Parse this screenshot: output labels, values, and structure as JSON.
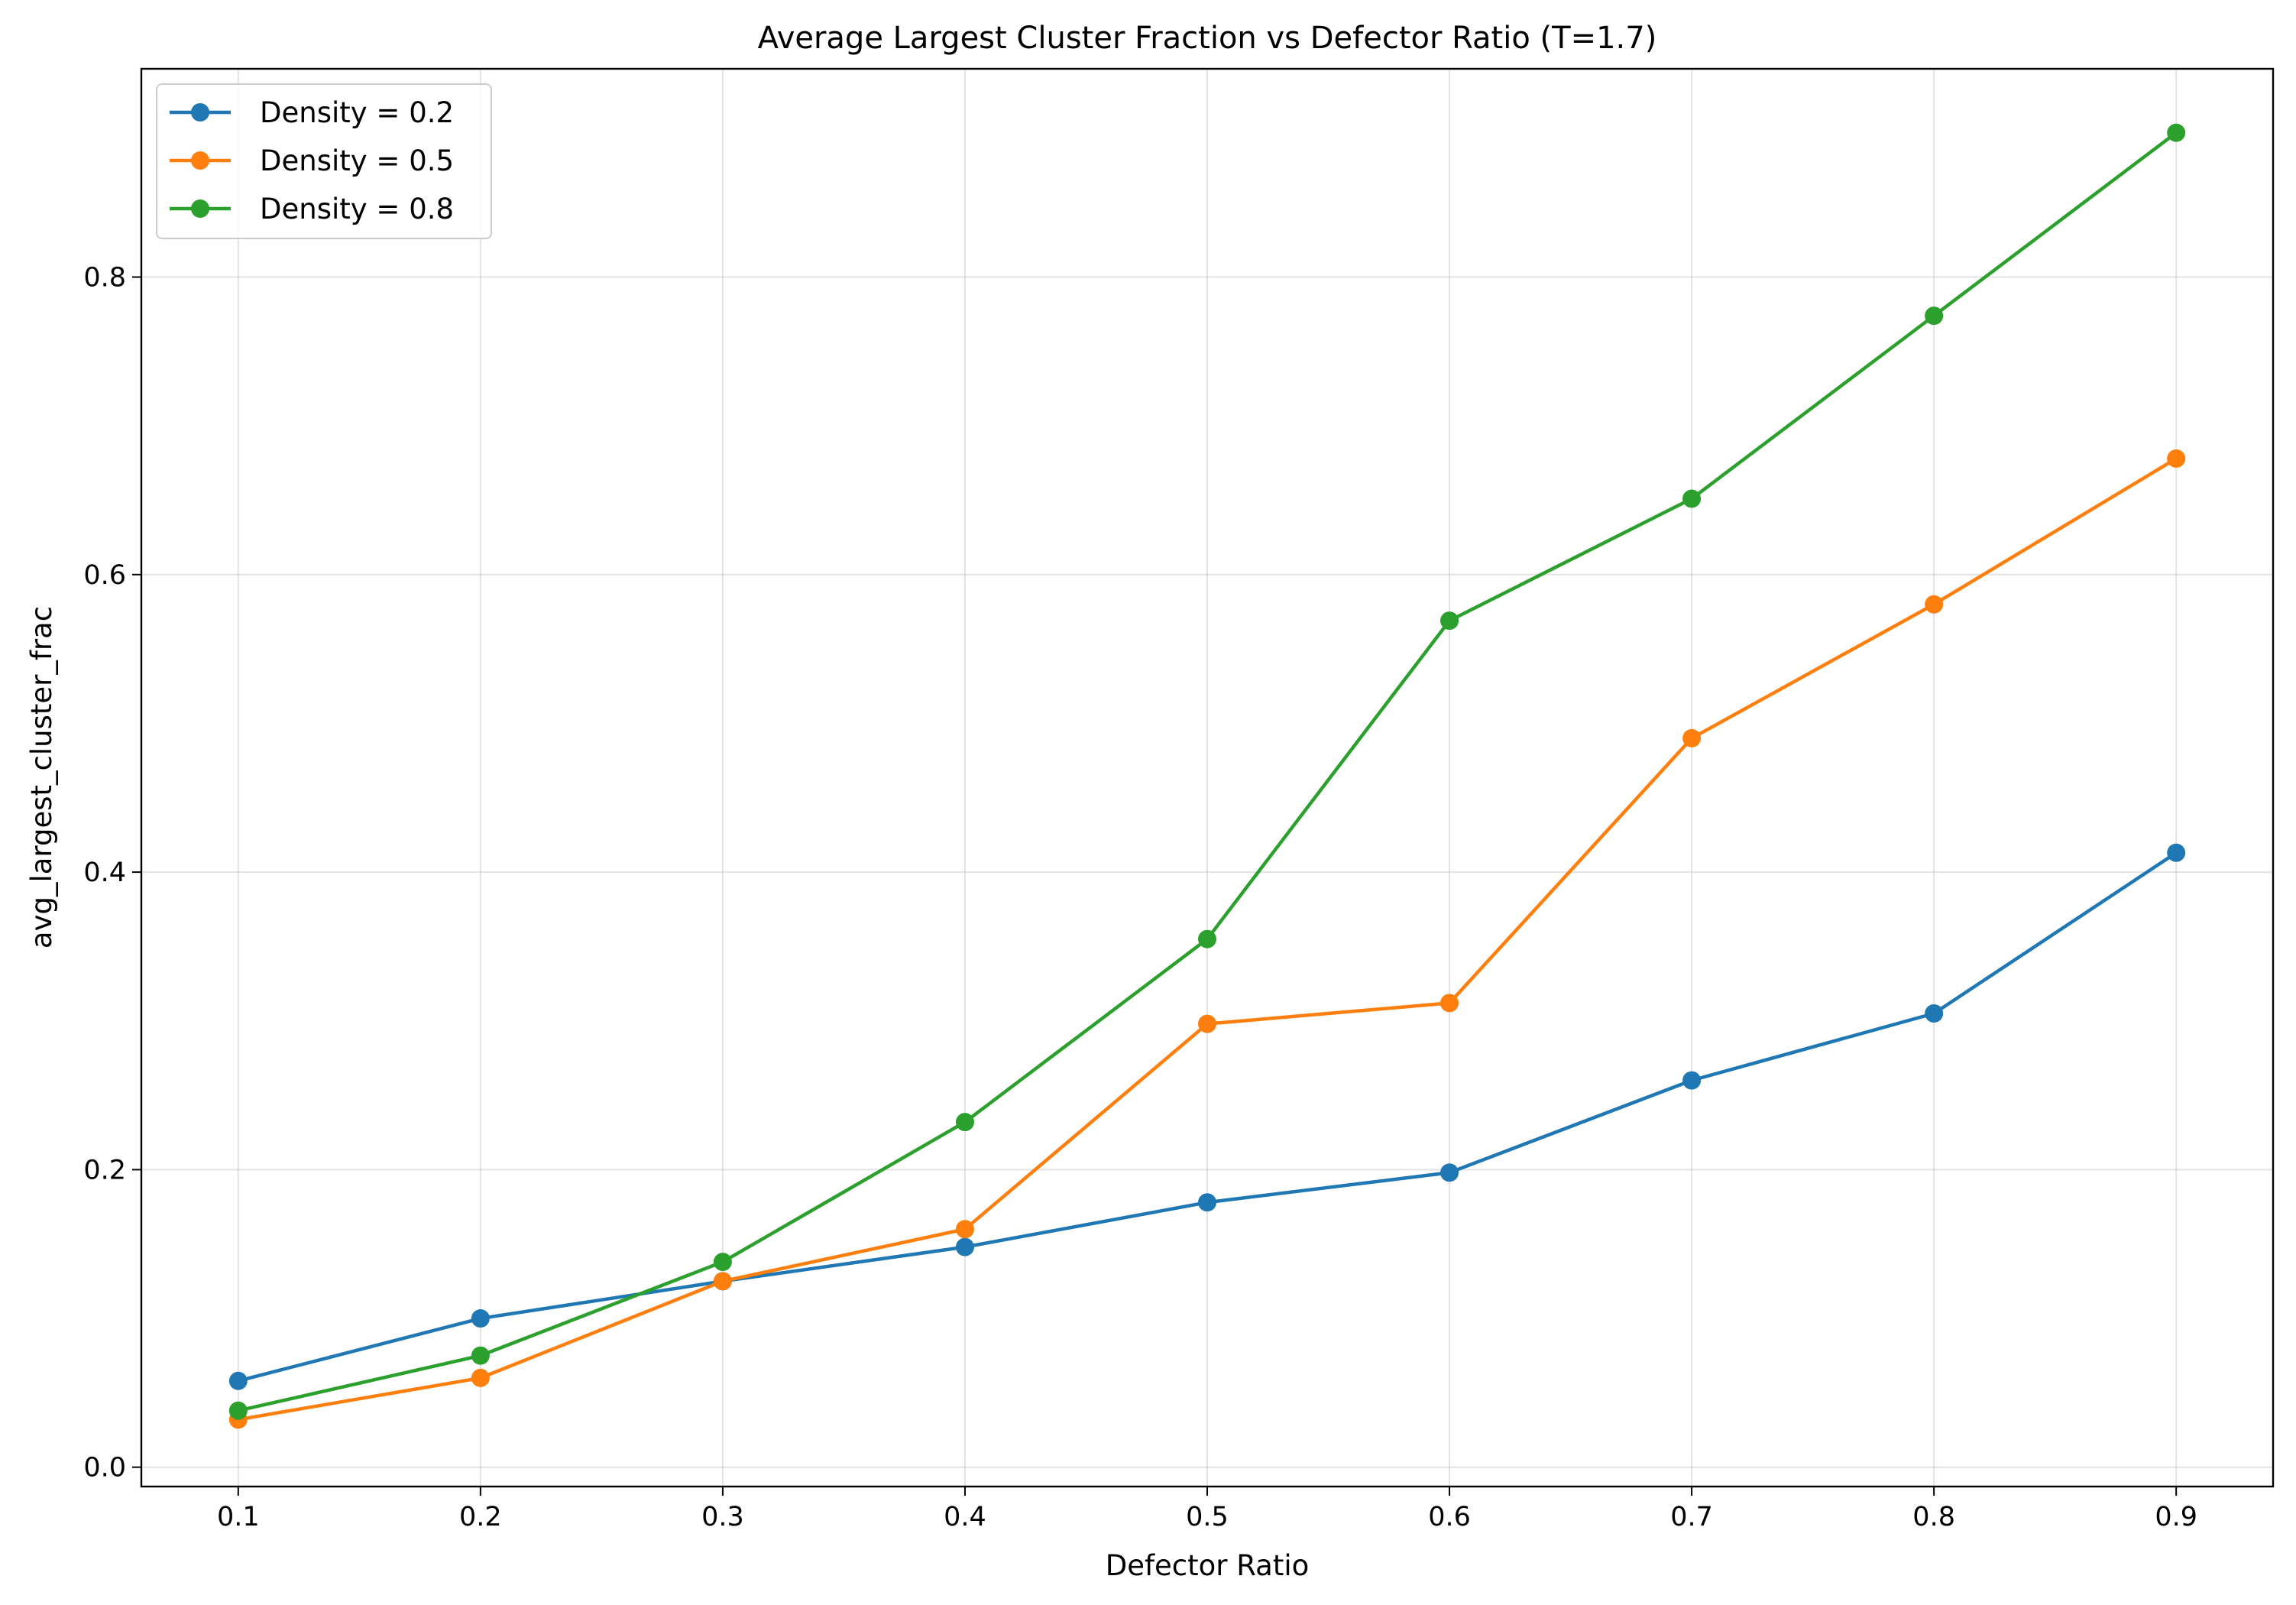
{
  "chart_data": {
    "type": "line",
    "title": "Average Largest Cluster Fraction vs Defector Ratio (T=1.7)",
    "xlabel": "Defector Ratio",
    "ylabel": "avg_largest_cluster_frac",
    "xlim": [
      0.06,
      0.94
    ],
    "ylim": [
      -0.013,
      0.94
    ],
    "x": [
      0.1,
      0.2,
      0.3,
      0.4,
      0.5,
      0.6,
      0.7,
      0.8,
      0.9
    ],
    "xticks": [
      "0.1",
      "0.2",
      "0.3",
      "0.4",
      "0.5",
      "0.6",
      "0.7",
      "0.8",
      "0.9"
    ],
    "yticks": [
      "0.0",
      "0.2",
      "0.4",
      "0.6",
      "0.8"
    ],
    "grid": true,
    "legend_position": "top-left",
    "series": [
      {
        "name": "Density = 0.2",
        "color": "#1f77b4",
        "values": [
          0.058,
          0.1,
          0.125,
          0.148,
          0.178,
          0.198,
          0.26,
          0.305,
          0.413
        ]
      },
      {
        "name": "Density = 0.5",
        "color": "#ff7f0e",
        "values": [
          0.032,
          0.06,
          0.125,
          0.16,
          0.298,
          0.312,
          0.49,
          0.58,
          0.678
        ]
      },
      {
        "name": "Density = 0.8",
        "color": "#2ca02c",
        "values": [
          0.038,
          0.075,
          0.138,
          0.232,
          0.355,
          0.569,
          0.651,
          0.774,
          0.897
        ]
      }
    ]
  }
}
